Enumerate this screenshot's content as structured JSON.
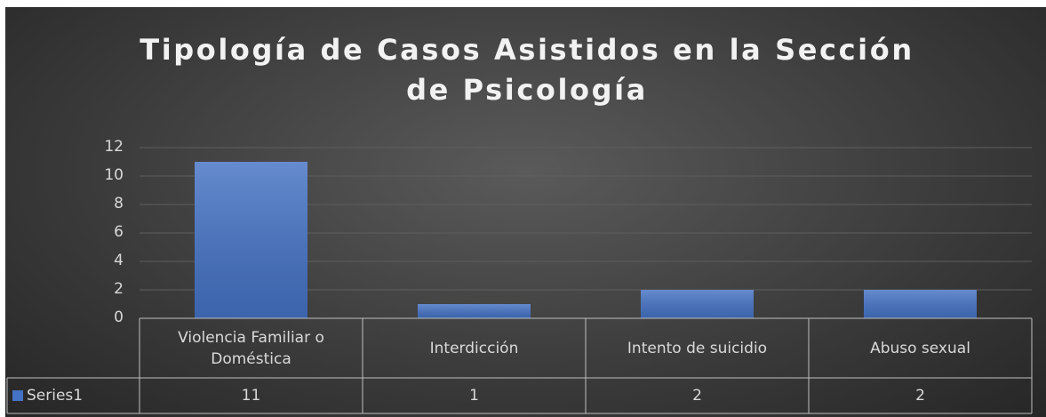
{
  "chart_data": {
    "type": "bar",
    "title": "Tipología de Casos Asistidos en la Sección de Psicología",
    "categories": [
      "Violencia Familiar o Doméstica",
      "Interdicción",
      "Intento de suicidio",
      "Abuso sexual"
    ],
    "series": [
      {
        "name": "Series1",
        "color": "#4472c4",
        "values": [
          11,
          1,
          2,
          2
        ]
      }
    ],
    "ylim": [
      0,
      12
    ],
    "yticks": [
      0,
      2,
      4,
      6,
      8,
      10,
      12
    ],
    "grid": true,
    "data_table": true
  }
}
